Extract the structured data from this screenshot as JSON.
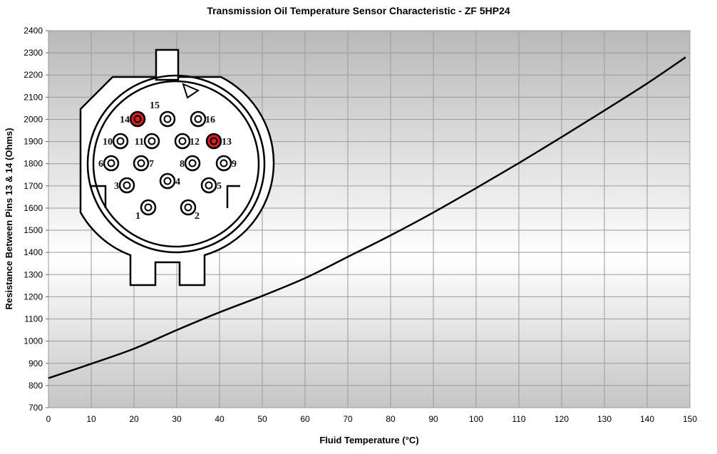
{
  "chart_data": {
    "type": "line",
    "title": "Transmission Oil Temperature Sensor Characteristic -  ZF 5HP24",
    "xlabel": "Fluid Temperature (°C)",
    "xlabel_parts": {
      "pre": "Fluid Temperature (",
      "sup": "o",
      "post": "C)"
    },
    "ylabel": "Resistance Between Pins 13 & 14 (Ohms)",
    "xlim": [
      0,
      150
    ],
    "ylim": [
      700,
      2400
    ],
    "xticks": [
      0,
      10,
      20,
      30,
      40,
      50,
      60,
      70,
      80,
      90,
      100,
      110,
      120,
      130,
      140,
      150
    ],
    "yticks": [
      700,
      800,
      900,
      1000,
      1100,
      1200,
      1300,
      1400,
      1500,
      1600,
      1700,
      1800,
      1900,
      2000,
      2100,
      2200,
      2300,
      2400
    ],
    "grid": true,
    "series": [
      {
        "name": "Resistance",
        "color": "#000000",
        "x": [
          0,
          10,
          20,
          30,
          40,
          50,
          60,
          70,
          80,
          90,
          100,
          110,
          120,
          130,
          140,
          149
        ],
        "y": [
          833,
          898,
          966,
          1050,
          1130,
          1204,
          1284,
          1380,
          1477,
          1580,
          1690,
          1803,
          1920,
          2040,
          2162,
          2280
        ]
      }
    ]
  },
  "connector": {
    "highlight_color": "#d42020",
    "pins": [
      {
        "label": "14",
        "highlight": true
      },
      {
        "label": "15",
        "highlight": false
      },
      {
        "label": "16",
        "highlight": false
      },
      {
        "label": "10",
        "highlight": false
      },
      {
        "label": "11",
        "highlight": false
      },
      {
        "label": "12",
        "highlight": false
      },
      {
        "label": "13",
        "highlight": true
      },
      {
        "label": "6",
        "highlight": false
      },
      {
        "label": "7",
        "highlight": false
      },
      {
        "label": "8",
        "highlight": false
      },
      {
        "label": "9",
        "highlight": false
      },
      {
        "label": "3",
        "highlight": false
      },
      {
        "label": "4",
        "highlight": false
      },
      {
        "label": "5",
        "highlight": false
      },
      {
        "label": "1",
        "highlight": false
      },
      {
        "label": "2",
        "highlight": false
      }
    ]
  }
}
